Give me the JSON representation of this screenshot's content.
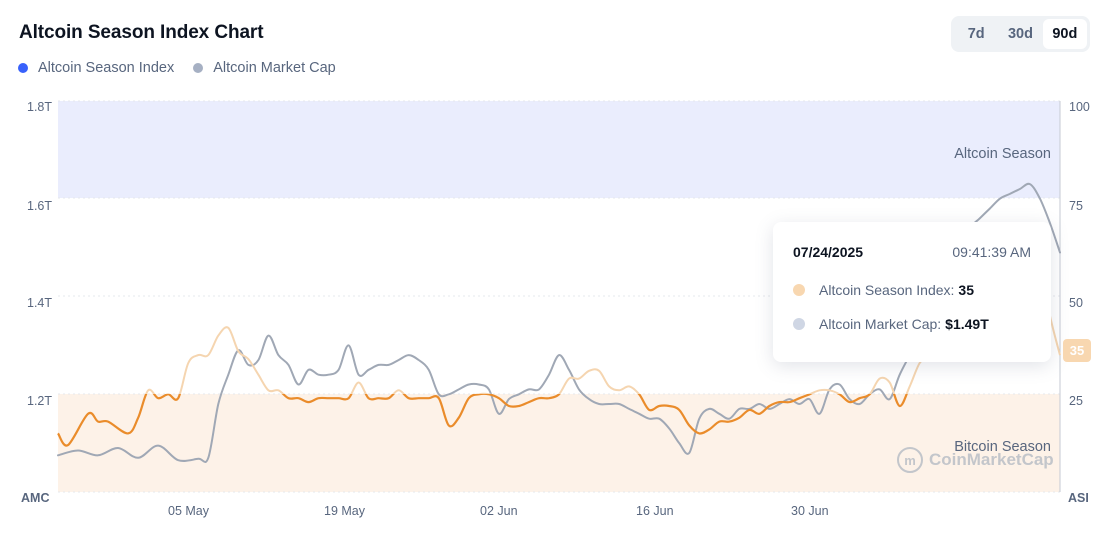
{
  "header": {
    "title": "Altcoin Season Index Chart"
  },
  "legend": [
    {
      "label": "Altcoin Season Index",
      "color": "#3861fb"
    },
    {
      "label": "Altcoin Market Cap",
      "color": "#a6b0c3"
    }
  ],
  "range_selector": {
    "options": [
      "7d",
      "30d",
      "90d"
    ],
    "selected": "90d"
  },
  "zones": {
    "altcoin_season_label": "Altcoin Season",
    "bitcoin_season_label": "Bitcoin Season",
    "altcoin_zone_color": "#eaedfd",
    "bitcoin_zone_color": "#fdf2e8"
  },
  "axes": {
    "left_title": "AMC",
    "right_title": "ASI",
    "left_ticks": [
      "1.8T",
      "1.6T",
      "1.4T",
      "1.2T"
    ],
    "right_ticks": [
      "100",
      "75",
      "50",
      "25"
    ],
    "x_ticks": [
      "05 May",
      "19 May",
      "02 Jun",
      "16 Jun",
      "30 Jun"
    ]
  },
  "tooltip": {
    "date": "07/24/2025",
    "time": "09:41:39 AM",
    "index_label": "Altcoin Season Index:",
    "index_value": "35",
    "index_dot_color": "#f8d7b0",
    "mcap_label": "Altcoin Market Cap:",
    "mcap_value": "$1.49T",
    "mcap_dot_color": "#cfd6e4"
  },
  "current_badge": "35",
  "watermark": "CoinMarketCap",
  "colors": {
    "index_line_below": "#ea8c2b",
    "index_line_above": "#f5d5b0",
    "mcap_line": "#a0a8b5"
  },
  "chart_data": {
    "type": "line",
    "title": "Altcoin Season Index Chart",
    "xlabel": "",
    "ylabel_left": "AMC (Altcoin Market Cap)",
    "ylabel_right": "ASI (Altcoin Season Index)",
    "ylim_left": [
      1.0,
      1.8
    ],
    "ylim_right": [
      0,
      100
    ],
    "x_tick_labels": [
      "05 May",
      "19 May",
      "02 Jun",
      "16 Jun",
      "30 Jun"
    ],
    "legend": [
      "Altcoin Season Index",
      "Altcoin Market Cap"
    ],
    "legend_position": "top-left",
    "grid": true,
    "annotations": [
      "Altcoin Season (75-100)",
      "Bitcoin Season (0-25)",
      "Tooltip 07/24/2025 09:41:39 AM: ASI 35, AMC $1.49T"
    ],
    "x": [
      0,
      4,
      8,
      12,
      16,
      20,
      24,
      28,
      32,
      36,
      40,
      44,
      48,
      52,
      56,
      60,
      64,
      68,
      72,
      76,
      80,
      84,
      88,
      92,
      96,
      100
    ],
    "series": [
      {
        "name": "Altcoin Season Index",
        "axis": "right",
        "x": [
          0,
          1,
          3,
          4,
          5,
          7,
          8,
          9,
          10,
          11,
          12,
          13,
          14,
          15,
          16,
          17,
          18,
          19,
          20,
          21,
          22,
          23,
          24,
          25,
          26,
          27,
          28,
          29,
          30,
          31,
          32,
          33,
          34,
          35,
          36,
          37,
          38,
          39,
          40,
          41,
          42,
          43,
          44,
          45,
          46,
          47,
          48,
          49,
          50,
          51,
          52,
          53,
          54,
          55,
          56,
          57,
          58,
          59,
          60,
          61,
          62,
          63,
          64,
          65,
          66,
          67,
          68,
          69,
          70,
          71,
          72,
          73,
          74,
          75,
          76,
          77,
          78,
          79,
          80,
          81,
          82,
          83,
          84,
          85,
          86,
          87,
          88,
          89,
          90,
          91,
          92,
          93,
          94,
          95,
          96,
          97,
          98,
          99,
          100
        ],
        "values": [
          15,
          12,
          20,
          18,
          18,
          15,
          19,
          26,
          24,
          25,
          24,
          33,
          35,
          35,
          40,
          42,
          36,
          34,
          30,
          26,
          26,
          24,
          24,
          23,
          24,
          24,
          24,
          24,
          28,
          24,
          24,
          24,
          26,
          24,
          24,
          24,
          24,
          17,
          19,
          24,
          25,
          25,
          24,
          22,
          22,
          23,
          24,
          24,
          25,
          29,
          29,
          31,
          31,
          27,
          26,
          27,
          25,
          21,
          22,
          22,
          21,
          17,
          15,
          16,
          18,
          18,
          19,
          21,
          20,
          22,
          23,
          23,
          24,
          25,
          26,
          26,
          25,
          23,
          24,
          25,
          29,
          28,
          22,
          27,
          33,
          35,
          34,
          37,
          37,
          37,
          40,
          45,
          48,
          52,
          55,
          57,
          58,
          45,
          35
        ]
      },
      {
        "name": "Altcoin Market Cap",
        "axis": "left",
        "unit": "T USD",
        "x": [
          0,
          2,
          4,
          6,
          8,
          10,
          12,
          14,
          15,
          16,
          17,
          18,
          19,
          20,
          21,
          22,
          23,
          24,
          25,
          26,
          27,
          28,
          29,
          30,
          31,
          32,
          33,
          34,
          35,
          36,
          37,
          38,
          39,
          40,
          41,
          42,
          43,
          44,
          45,
          46,
          47,
          48,
          49,
          50,
          51,
          52,
          53,
          54,
          55,
          56,
          57,
          58,
          59,
          60,
          61,
          62,
          63,
          64,
          65,
          66,
          67,
          68,
          69,
          70,
          71,
          72,
          73,
          74,
          75,
          76,
          77,
          78,
          79,
          80,
          81,
          82,
          83,
          84,
          85,
          86,
          87,
          88,
          89,
          90,
          91,
          92,
          93,
          94,
          95,
          96,
          97,
          98,
          99,
          100
        ],
        "values": [
          1.075,
          1.085,
          1.075,
          1.09,
          1.07,
          1.095,
          1.065,
          1.068,
          1.07,
          1.18,
          1.24,
          1.29,
          1.26,
          1.27,
          1.32,
          1.28,
          1.26,
          1.22,
          1.25,
          1.24,
          1.24,
          1.25,
          1.3,
          1.24,
          1.25,
          1.26,
          1.26,
          1.27,
          1.28,
          1.27,
          1.25,
          1.2,
          1.2,
          1.21,
          1.22,
          1.22,
          1.21,
          1.16,
          1.19,
          1.2,
          1.21,
          1.21,
          1.24,
          1.28,
          1.25,
          1.21,
          1.19,
          1.18,
          1.18,
          1.18,
          1.17,
          1.16,
          1.15,
          1.15,
          1.13,
          1.1,
          1.08,
          1.15,
          1.17,
          1.16,
          1.15,
          1.17,
          1.17,
          1.18,
          1.17,
          1.18,
          1.19,
          1.18,
          1.19,
          1.16,
          1.21,
          1.22,
          1.19,
          1.18,
          1.2,
          1.21,
          1.19,
          1.24,
          1.28,
          1.32,
          1.38,
          1.42,
          1.46,
          1.5,
          1.54,
          1.56,
          1.58,
          1.6,
          1.61,
          1.62,
          1.63,
          1.6,
          1.55,
          1.49
        ]
      }
    ]
  }
}
